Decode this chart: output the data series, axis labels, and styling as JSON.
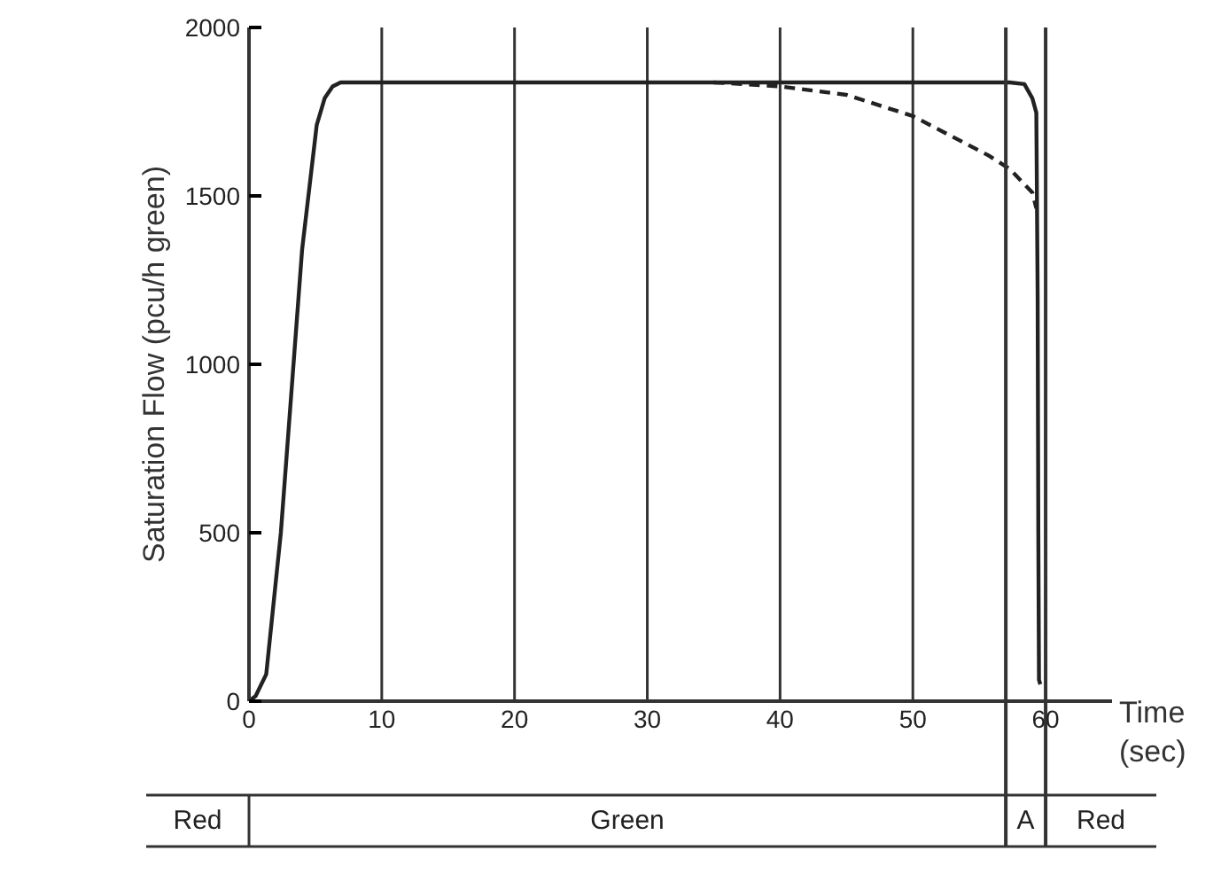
{
  "chart_data": {
    "type": "line",
    "xlabel": "Time (sec)",
    "ylabel": "Saturation Flow (pcu/h green)",
    "xlim": [
      0,
      65
    ],
    "ylim": [
      0,
      2000
    ],
    "xticks": [
      0,
      10,
      20,
      30,
      40,
      50,
      60
    ],
    "yticks": [
      0,
      500,
      1000,
      1500,
      2000
    ],
    "grid": "x",
    "marker": "none",
    "series": [
      {
        "color": "#222222",
        "line_style": "solid",
        "x": [
          0,
          0.5,
          1.3,
          2.4,
          4.0,
          5.1,
          5.7,
          6.3,
          6.9,
          57.3,
          58.4,
          59.0,
          59.3,
          59.4,
          59.45,
          59.5,
          59.6
        ],
        "values": [
          0,
          15,
          80,
          500,
          1340,
          1710,
          1790,
          1825,
          1837,
          1837,
          1832,
          1790,
          1747,
          1200,
          500,
          63,
          50
        ]
      },
      {
        "color": "#222222",
        "line_style": "dashed",
        "x": [
          35,
          40,
          45,
          50,
          55.7,
          57.3,
          59,
          59.3
        ],
        "values": [
          1837,
          1825,
          1800,
          1737,
          1620,
          1580,
          1510,
          1463
        ]
      }
    ],
    "ref_lines": [
      {
        "axis": "x",
        "value": 57,
        "color": "#333333"
      },
      {
        "axis": "x",
        "value": 60,
        "color": "#333333"
      }
    ],
    "annotations": [
      "Red",
      "Green",
      "A",
      "Red"
    ]
  }
}
